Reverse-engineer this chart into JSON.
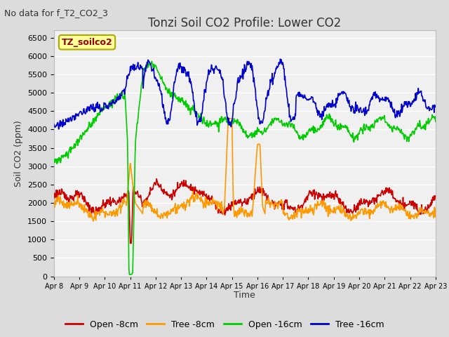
{
  "title": "Tonzi Soil CO2 Profile: Lower CO2",
  "no_data_text": "No data for f_T2_CO2_3",
  "watermark_text": "TZ_soilco2",
  "ylabel": "Soil CO2 (ppm)",
  "xlabel": "Time",
  "ylim": [
    0,
    6700
  ],
  "yticks": [
    0,
    500,
    1000,
    1500,
    2000,
    2500,
    3000,
    3500,
    4000,
    4500,
    5000,
    5500,
    6000,
    6500
  ],
  "xtick_labels": [
    "Apr 8",
    "Apr 9",
    "Apr 10",
    "Apr 11",
    "Apr 12",
    "Apr 13",
    "Apr 14",
    "Apr 15",
    "Apr 16",
    "Apr 17",
    "Apr 18",
    "Apr 19",
    "Apr 20",
    "Apr 21",
    "Apr 22",
    "Apr 23"
  ],
  "legend_labels": [
    "Open -8cm",
    "Tree -8cm",
    "Open -16cm",
    "Tree -16cm"
  ],
  "color_open8": "#cc0000",
  "color_tree8": "#ff9900",
  "color_open16": "#00cc00",
  "color_tree16": "#0000cc",
  "fig_bg": "#dcdcdc",
  "plot_bg": "#f0f0f0",
  "grid_color": "#ffffff",
  "watermark_fg": "#990000",
  "watermark_bg": "#ffff99",
  "watermark_edge": "#aaaa00",
  "title_fs": 12,
  "nodata_fs": 9,
  "watermark_fs": 9,
  "ylabel_fs": 9,
  "xlabel_fs": 9,
  "ytick_fs": 8,
  "xtick_fs": 7,
  "legend_fs": 9,
  "linewidth": 1.2
}
